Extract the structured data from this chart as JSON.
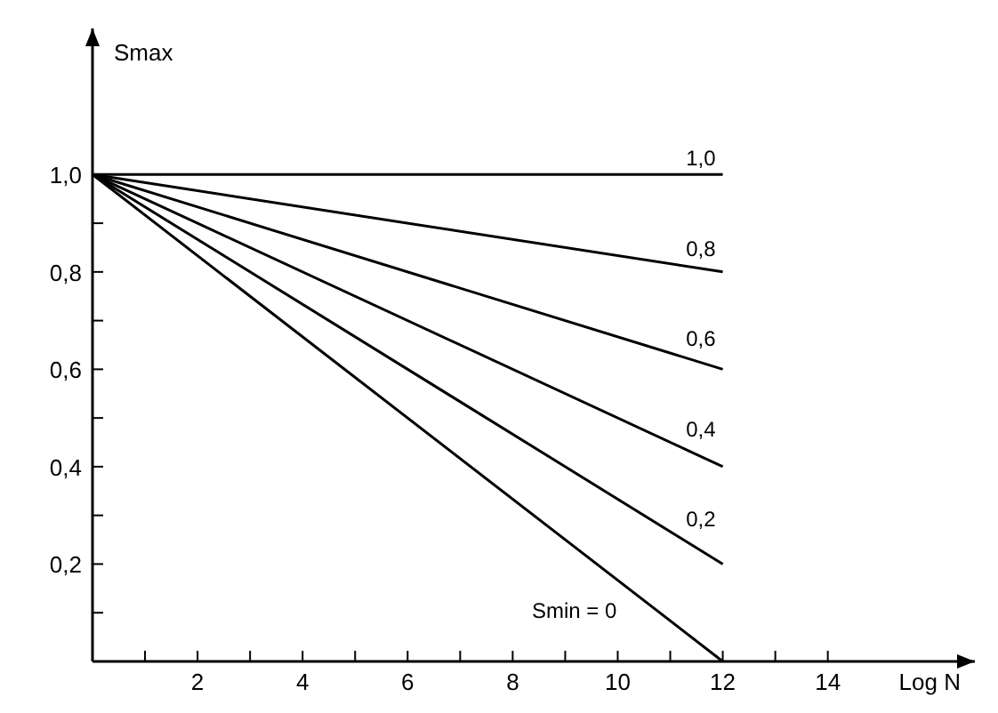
{
  "chart_data": {
    "type": "line",
    "xlabel": "Log N",
    "ylabel": "Smax",
    "x": [
      0,
      12
    ],
    "series": [
      {
        "name": "1,0",
        "color": "#000000",
        "values": [
          1,
          1
        ]
      },
      {
        "name": "0,8",
        "color": "#000000",
        "values": [
          1,
          0.8
        ]
      },
      {
        "name": "0,6",
        "color": "#000000",
        "values": [
          1,
          0.6
        ]
      },
      {
        "name": "0,4",
        "color": "#000000",
        "values": [
          1,
          0.4
        ]
      },
      {
        "name": "0,2",
        "color": "#000000",
        "values": [
          1,
          0.2
        ]
      },
      {
        "name": "Smin = 0",
        "color": "#000000",
        "values": [
          1,
          0
        ]
      }
    ],
    "xlim": [
      0,
      16.8
    ],
    "ylim": [
      0,
      1.3
    ],
    "xticks": [
      {
        "value": 1,
        "label": null
      },
      2,
      {
        "value": 3,
        "label": null
      },
      4,
      {
        "value": 5,
        "label": null
      },
      6,
      {
        "value": 7,
        "label": null
      },
      8,
      {
        "value": 9,
        "label": null
      },
      10,
      {
        "value": 11,
        "label": null
      },
      12,
      {
        "value": 13,
        "label": null
      },
      14
    ],
    "yticks": [
      {
        "value": 0.1,
        "label": null
      },
      {
        "value": 0.2,
        "label": "0,2"
      },
      {
        "value": 0.3,
        "label": null
      },
      {
        "value": 0.4,
        "label": "0,4"
      },
      {
        "value": 0.5,
        "label": null
      },
      {
        "value": 0.6,
        "label": "0,6"
      },
      {
        "value": 0.7,
        "label": null
      },
      {
        "value": 0.8,
        "label": "0,8"
      },
      {
        "value": 0.9,
        "label": null
      },
      {
        "value": 1.0,
        "label": "1,0"
      }
    ],
    "grid": false,
    "legend": false,
    "marker": "none",
    "line_style": "solid"
  }
}
